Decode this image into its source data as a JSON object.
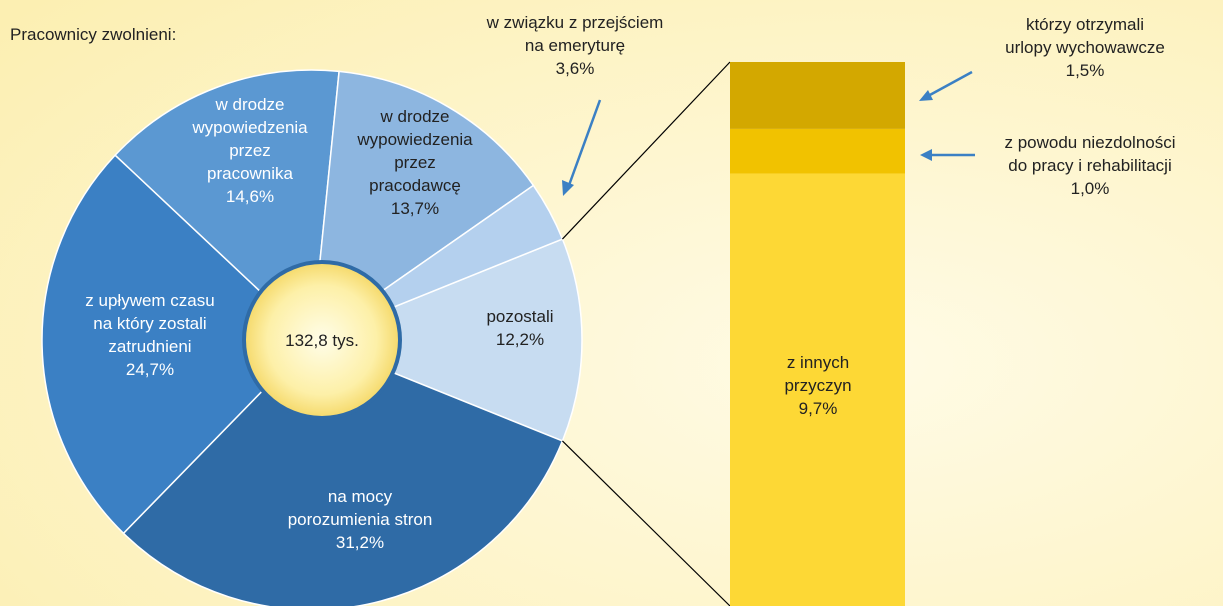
{
  "chart_data": {
    "type": "pie-of-bar",
    "title": "Pracownicy zwolnieni:",
    "center_label": "132,8 tys.",
    "categories": [
      "pozostali",
      "na mocy\nporozumienia stron",
      "z upływem czasu\nna który zostali\nzatrudnieni",
      "w drodze\nwypowiedzenia\nprzez\npracownika",
      "w drodze\nwypowiedzenia\nprzez\npracodawcę",
      "w związku z przejściem\nna emeryturę"
    ],
    "values": [
      12.2,
      31.2,
      24.7,
      14.6,
      13.7,
      3.6
    ],
    "value_labels": [
      "12,2%",
      "31,2%",
      "24,7%",
      "14,6%",
      "13,7%",
      "3,6%"
    ],
    "colors": [
      "#c7dcf1",
      "#2f6ba6",
      "#3b80c4",
      "#5b98d2",
      "#8db6e0",
      "#b4d0ee"
    ],
    "bar": {
      "categories": [
        "z innych\nprzyczyn",
        "z powodu niezdolności\ndo pracy i rehabilitacji",
        "którzy otrzymali\nurlopy wychowawcze"
      ],
      "values": [
        9.7,
        1.0,
        1.5
      ],
      "value_labels": [
        "9,7%",
        "1,0%",
        "1,5%"
      ],
      "colors": [
        "#fdd835",
        "#f1c200",
        "#d3a800"
      ]
    }
  }
}
